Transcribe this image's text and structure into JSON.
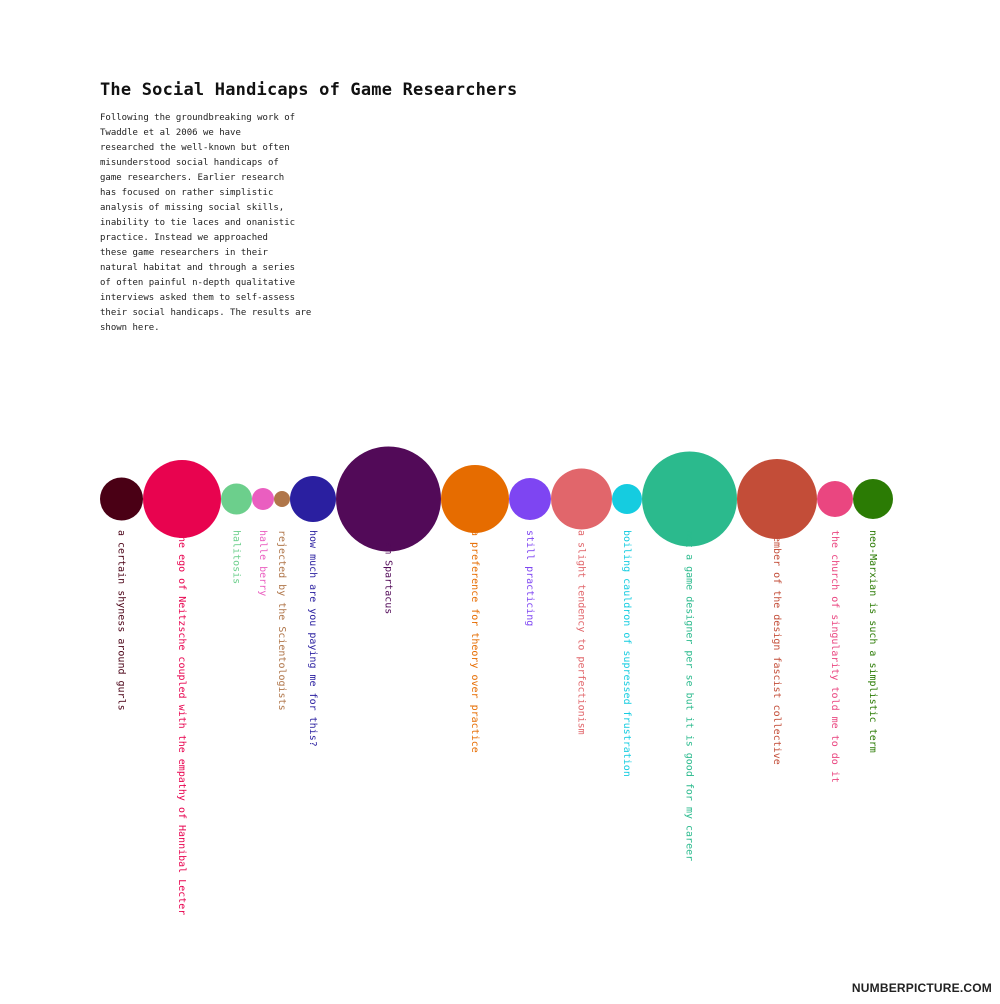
{
  "page": {
    "title": "The Social Handicaps of Game Researchers",
    "intro_lines": [
      "Following the groundbreaking work of",
      "Twaddle et al 2006 we have",
      "researched the well-known but often",
      "misunderstood social handicaps of",
      "game researchers. Earlier research",
      "has focused on rather simplistic",
      "analysis of missing social skills,",
      "inability to tie laces and onanistic",
      "practice. Instead we approached",
      "these game researchers in their",
      "natural habitat and through a series",
      "of often painful n-depth qualitative",
      "interviews asked them to self-assess",
      "their social handicaps. The results are",
      "shown here."
    ],
    "watermark": "NUMBERPICTURE.COM"
  },
  "chart_data": {
    "type": "bubble",
    "title": "The Social Handicaps of Game Researchers",
    "size_unit": "relative bubble diameter (px in a 1000px-wide original)",
    "series": [
      {
        "label": "a certain shyness around gurls",
        "size": 43,
        "color": "#4a0015"
      },
      {
        "label": "the ego of Neitzsche coupled with the empathy of Hannibal Lecter",
        "size": 78,
        "color": "#e8034f"
      },
      {
        "label": "halitosis",
        "size": 31,
        "color": "#6ccf8c"
      },
      {
        "label": "halle berry",
        "size": 22,
        "color": "#ea5ec0"
      },
      {
        "label": "rejected by the Scientologists",
        "size": 16,
        "color": "#b0764a"
      },
      {
        "label": "how much are you paying me for this?",
        "size": 46,
        "color": "#2a1fa0"
      },
      {
        "label": "I am Spartacus",
        "size": 105,
        "color": "#520a58"
      },
      {
        "label": "a preference for theory over practice",
        "size": 68,
        "color": "#e66c00"
      },
      {
        "label": "still practicing",
        "size": 42,
        "color": "#7e45f2"
      },
      {
        "label": "a slight tendency to perfectionism",
        "size": 61,
        "color": "#e1666b"
      },
      {
        "label": "boiling cauldron of supressed frustration",
        "size": 30,
        "color": "#15cce0"
      },
      {
        "label": "not a game designer per se but it is good for my career",
        "size": 95,
        "color": "#2bba8d"
      },
      {
        "label": "member of the design fascist collective",
        "size": 80,
        "color": "#c34d38"
      },
      {
        "label": "the church of singularity told me to do it",
        "size": 36,
        "color": "#ea4680"
      },
      {
        "label": "neo-Marxian is such a simplistic term",
        "size": 40,
        "color": "#2b7b04"
      }
    ]
  }
}
